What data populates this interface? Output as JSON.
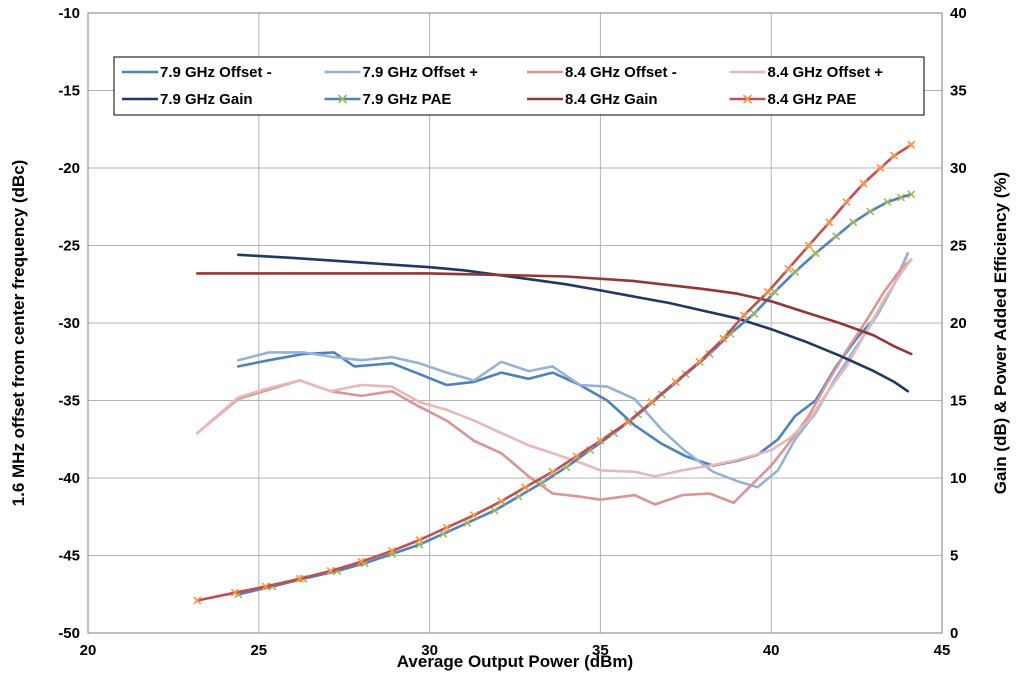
{
  "chart_data": {
    "type": "line",
    "xlabel": "Average Output Power (dBm)",
    "ylabel": "1.6 MHz offset from center frequency (dBc)",
    "y2label": "Gain (dB) & Power Added Efficiency (%)",
    "xlim": [
      20,
      45
    ],
    "ylim": [
      -50,
      -10
    ],
    "y2lim": [
      0,
      40
    ],
    "xticks": [
      20,
      25,
      30,
      35,
      40,
      45
    ],
    "yticks": [
      -50,
      -45,
      -40,
      -35,
      -30,
      -25,
      -20,
      -15,
      -10
    ],
    "y2ticks": [
      0,
      5,
      10,
      15,
      20,
      25,
      30,
      35,
      40
    ],
    "grid": true,
    "legend_position": "top",
    "series": [
      {
        "name": "7.9 GHz Offset -",
        "axis": "left",
        "color": "#4f81bd",
        "marker": "none",
        "x": [
          24.4,
          25.3,
          26.3,
          27.2,
          27.8,
          28.9,
          29.7,
          30.5,
          31.3,
          32.1,
          32.9,
          33.6,
          34.4,
          35.2,
          36.0,
          36.8,
          37.5,
          38.3,
          39.0,
          39.6,
          40.2,
          40.7,
          41.3,
          41.9,
          42.5,
          43.1,
          43.6,
          44.0
        ],
        "values": [
          -32.8,
          -32.4,
          -32.0,
          -31.9,
          -32.8,
          -32.6,
          -33.3,
          -34.0,
          -33.8,
          -33.2,
          -33.6,
          -33.2,
          -34.0,
          -35.0,
          -36.6,
          -37.8,
          -38.6,
          -39.2,
          -38.9,
          -38.5,
          -37.5,
          -36.0,
          -35.0,
          -32.8,
          -31.0,
          -29.5,
          -27.5,
          -25.5
        ]
      },
      {
        "name": "7.9 GHz Offset +",
        "axis": "left",
        "color": "#95b3d7",
        "marker": "none",
        "x": [
          24.4,
          25.3,
          26.3,
          27.2,
          28.0,
          28.9,
          29.7,
          30.5,
          31.3,
          32.1,
          32.9,
          33.6,
          34.4,
          35.2,
          36.0,
          36.8,
          37.5,
          38.3,
          39.0,
          39.6,
          40.2,
          40.7,
          41.3,
          41.9,
          42.5,
          43.1,
          43.6,
          44.0
        ],
        "values": [
          -32.4,
          -31.9,
          -31.9,
          -32.2,
          -32.4,
          -32.2,
          -32.6,
          -33.2,
          -33.7,
          -32.5,
          -33.1,
          -32.8,
          -34.0,
          -34.1,
          -34.9,
          -36.9,
          -38.3,
          -39.6,
          -40.2,
          -40.6,
          -39.5,
          -37.5,
          -35.8,
          -33.5,
          -31.5,
          -29.5,
          -27.5,
          -25.5
        ]
      },
      {
        "name": "8.4 GHz Offset -",
        "axis": "left",
        "color": "#d99694",
        "marker": "none",
        "x": [
          23.2,
          24.4,
          25.3,
          26.2,
          27.1,
          28.0,
          28.9,
          29.7,
          30.5,
          31.3,
          32.1,
          32.9,
          33.6,
          34.4,
          35.0,
          36.0,
          36.6,
          37.4,
          38.2,
          38.9,
          39.4,
          40.0,
          40.5,
          41.1,
          41.6,
          42.2,
          42.8,
          43.3,
          43.8,
          44.1
        ],
        "values": [
          -37.1,
          -34.9,
          -34.3,
          -33.7,
          -34.4,
          -34.7,
          -34.4,
          -35.4,
          -36.3,
          -37.6,
          -38.4,
          -39.9,
          -41.0,
          -41.2,
          -41.4,
          -41.1,
          -41.7,
          -41.1,
          -41.0,
          -41.6,
          -40.5,
          -39.2,
          -37.8,
          -36.0,
          -34.0,
          -31.8,
          -29.8,
          -28.0,
          -26.5,
          -25.9
        ]
      },
      {
        "name": "8.4 GHz Offset +",
        "axis": "left",
        "color": "#e6b9b8",
        "marker": "none",
        "x": [
          23.2,
          24.4,
          25.3,
          26.2,
          27.1,
          28.0,
          28.9,
          29.7,
          30.5,
          31.3,
          32.1,
          32.9,
          33.6,
          34.4,
          35.0,
          36.0,
          36.6,
          37.4,
          38.2,
          38.9,
          39.4,
          40.0,
          40.5,
          41.1,
          41.6,
          42.2,
          42.8,
          43.3,
          43.8,
          44.1
        ],
        "values": [
          -37.1,
          -34.8,
          -34.2,
          -33.7,
          -34.4,
          -34.0,
          -34.1,
          -35.1,
          -35.6,
          -36.3,
          -37.1,
          -37.9,
          -38.4,
          -39.0,
          -39.5,
          -39.6,
          -39.9,
          -39.5,
          -39.2,
          -38.9,
          -38.6,
          -38.2,
          -37.5,
          -36.3,
          -34.6,
          -32.8,
          -30.5,
          -28.5,
          -26.8,
          -25.9
        ]
      },
      {
        "name": "7.9 GHz Gain",
        "axis": "right",
        "color": "#1f3864",
        "marker": "none",
        "x": [
          24.4,
          26.0,
          28.0,
          30.0,
          31.0,
          32.0,
          33.0,
          34.0,
          35.0,
          36.0,
          37.0,
          38.0,
          39.0,
          40.0,
          41.0,
          42.0,
          43.0,
          43.6,
          44.0
        ],
        "values": [
          24.4,
          24.2,
          23.9,
          23.6,
          23.4,
          23.1,
          22.8,
          22.5,
          22.1,
          21.7,
          21.3,
          20.8,
          20.3,
          19.6,
          18.8,
          17.9,
          16.9,
          16.2,
          15.6
        ]
      },
      {
        "name": "7.9 GHz PAE",
        "axis": "right",
        "color": "#4f81bd",
        "marker": "x",
        "marker_color": "#9bbb59",
        "x": [
          24.4,
          25.4,
          26.3,
          27.3,
          28.1,
          28.9,
          29.7,
          30.4,
          31.1,
          31.9,
          32.6,
          33.3,
          34.0,
          34.7,
          35.4,
          36.1,
          36.8,
          37.5,
          38.2,
          38.8,
          39.5,
          40.1,
          40.7,
          41.3,
          41.9,
          42.4,
          42.9,
          43.4,
          43.8,
          44.1
        ],
        "values": [
          2.5,
          3.0,
          3.5,
          4.0,
          4.5,
          5.1,
          5.7,
          6.4,
          7.1,
          7.9,
          8.8,
          9.7,
          10.7,
          11.8,
          12.9,
          14.1,
          15.4,
          16.7,
          18.0,
          19.3,
          20.6,
          22.0,
          23.3,
          24.5,
          25.6,
          26.5,
          27.2,
          27.8,
          28.1,
          28.3
        ]
      },
      {
        "name": "8.4 GHz Gain",
        "axis": "right",
        "color": "#943634",
        "marker": "none",
        "x": [
          23.2,
          26.0,
          28.0,
          30.0,
          32.0,
          34.0,
          36.0,
          38.0,
          39.0,
          40.0,
          41.0,
          42.0,
          43.0,
          43.6,
          44.1
        ],
        "values": [
          23.2,
          23.2,
          23.2,
          23.2,
          23.1,
          23.0,
          22.7,
          22.2,
          21.9,
          21.4,
          20.7,
          20.0,
          19.2,
          18.5,
          18.0
        ]
      },
      {
        "name": "8.4 GHz PAE",
        "axis": "right",
        "color": "#c0504d",
        "marker": "x",
        "marker_color": "#f79646",
        "x": [
          23.2,
          24.3,
          25.2,
          26.2,
          27.1,
          28.0,
          28.9,
          29.7,
          30.5,
          31.3,
          32.1,
          32.8,
          33.6,
          34.3,
          35.0,
          35.8,
          36.5,
          37.2,
          37.9,
          38.6,
          39.2,
          39.9,
          40.5,
          41.1,
          41.7,
          42.2,
          42.7,
          43.2,
          43.6,
          44.1
        ],
        "values": [
          2.1,
          2.6,
          3.0,
          3.5,
          4.0,
          4.6,
          5.3,
          6.0,
          6.8,
          7.6,
          8.5,
          9.4,
          10.4,
          11.4,
          12.4,
          13.6,
          14.9,
          16.2,
          17.5,
          19.0,
          20.5,
          22.0,
          23.5,
          25.0,
          26.5,
          27.8,
          29.0,
          30.0,
          30.8,
          31.5
        ]
      }
    ]
  }
}
